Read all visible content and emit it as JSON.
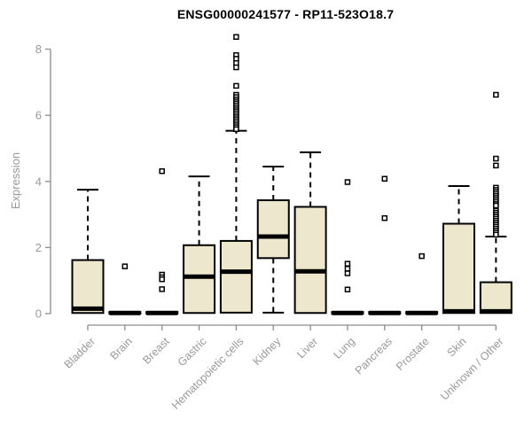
{
  "colors": {
    "box_fill": "#EDE8CD",
    "box_stroke": "#000000",
    "axis": "#8c8c8c",
    "axis_text": "#999999",
    "title_text": "#000000"
  },
  "chart_data": {
    "type": "boxplot",
    "title": "ENSG00000241577 - RP11-523O18.7",
    "ylabel": "Expression",
    "xlabel": "",
    "ylim": [
      0,
      8
    ],
    "yticks": [
      0,
      2,
      4,
      6,
      8
    ],
    "grid": false,
    "legend": "none",
    "categories": [
      "Bladder",
      "Brain",
      "Breast",
      "Gastric",
      "Hematopoietic cells",
      "Kidney",
      "Liver",
      "Lung",
      "Pancreas",
      "Prostate",
      "Skin",
      "Unknown / Other"
    ],
    "boxes": [
      {
        "name": "Bladder",
        "lo": 0,
        "q1": 0.02,
        "median": 0.15,
        "q3": 1.62,
        "hi": 3.75,
        "outliers": []
      },
      {
        "name": "Brain",
        "lo": 0,
        "q1": 0,
        "median": 0.02,
        "q3": 0.05,
        "hi": 0.05,
        "outliers": [
          1.43
        ]
      },
      {
        "name": "Breast",
        "lo": 0,
        "q1": 0,
        "median": 0.02,
        "q3": 0.05,
        "hi": 0.05,
        "outliers": [
          4.31,
          1.18,
          1.1,
          1.04,
          0.74
        ]
      },
      {
        "name": "Gastric",
        "lo": 0,
        "q1": 0.02,
        "median": 1.12,
        "q3": 2.07,
        "hi": 4.15,
        "outliers": []
      },
      {
        "name": "Hematopoietic cells",
        "lo": 0,
        "q1": 0.03,
        "median": 1.27,
        "q3": 2.2,
        "hi": 5.53,
        "outliers": [
          8.37,
          7.82,
          7.71,
          7.58,
          7.45,
          6.89,
          6.62,
          6.55,
          6.48,
          6.42,
          6.36,
          6.3,
          6.24,
          6.18,
          6.12,
          6.06,
          6.0,
          5.94,
          5.88,
          5.82,
          5.76,
          5.7,
          5.64,
          5.58
        ]
      },
      {
        "name": "Kidney",
        "lo": 0.03,
        "q1": 1.68,
        "median": 2.33,
        "q3": 3.43,
        "hi": 4.45,
        "outliers": []
      },
      {
        "name": "Liver",
        "lo": 0,
        "q1": 0.02,
        "median": 1.28,
        "q3": 3.23,
        "hi": 4.88,
        "outliers": []
      },
      {
        "name": "Lung",
        "lo": 0,
        "q1": 0,
        "median": 0.02,
        "q3": 0.05,
        "hi": 0.05,
        "outliers": [
          3.98,
          1.51,
          1.36,
          1.22,
          0.73
        ]
      },
      {
        "name": "Pancreas",
        "lo": 0,
        "q1": 0,
        "median": 0.02,
        "q3": 0.05,
        "hi": 0.05,
        "outliers": [
          4.08,
          2.89
        ]
      },
      {
        "name": "Prostate",
        "lo": 0,
        "q1": 0,
        "median": 0.02,
        "q3": 0.05,
        "hi": 0.05,
        "outliers": [
          1.74
        ]
      },
      {
        "name": "Skin",
        "lo": 0,
        "q1": 0.02,
        "median": 0.07,
        "q3": 2.72,
        "hi": 3.86,
        "outliers": []
      },
      {
        "name": "Unknown / Other",
        "lo": 0,
        "q1": 0.02,
        "median": 0.07,
        "q3": 0.95,
        "hi": 2.33,
        "outliers": [
          6.62,
          4.69,
          4.48,
          3.81,
          3.74,
          3.68,
          3.62,
          3.56,
          3.5,
          3.44,
          3.38,
          3.32,
          3.27,
          3.11,
          3.05,
          2.99,
          2.93,
          2.87,
          2.81,
          2.75,
          2.69,
          2.63,
          2.57,
          2.51,
          2.45,
          2.39
        ]
      }
    ]
  }
}
